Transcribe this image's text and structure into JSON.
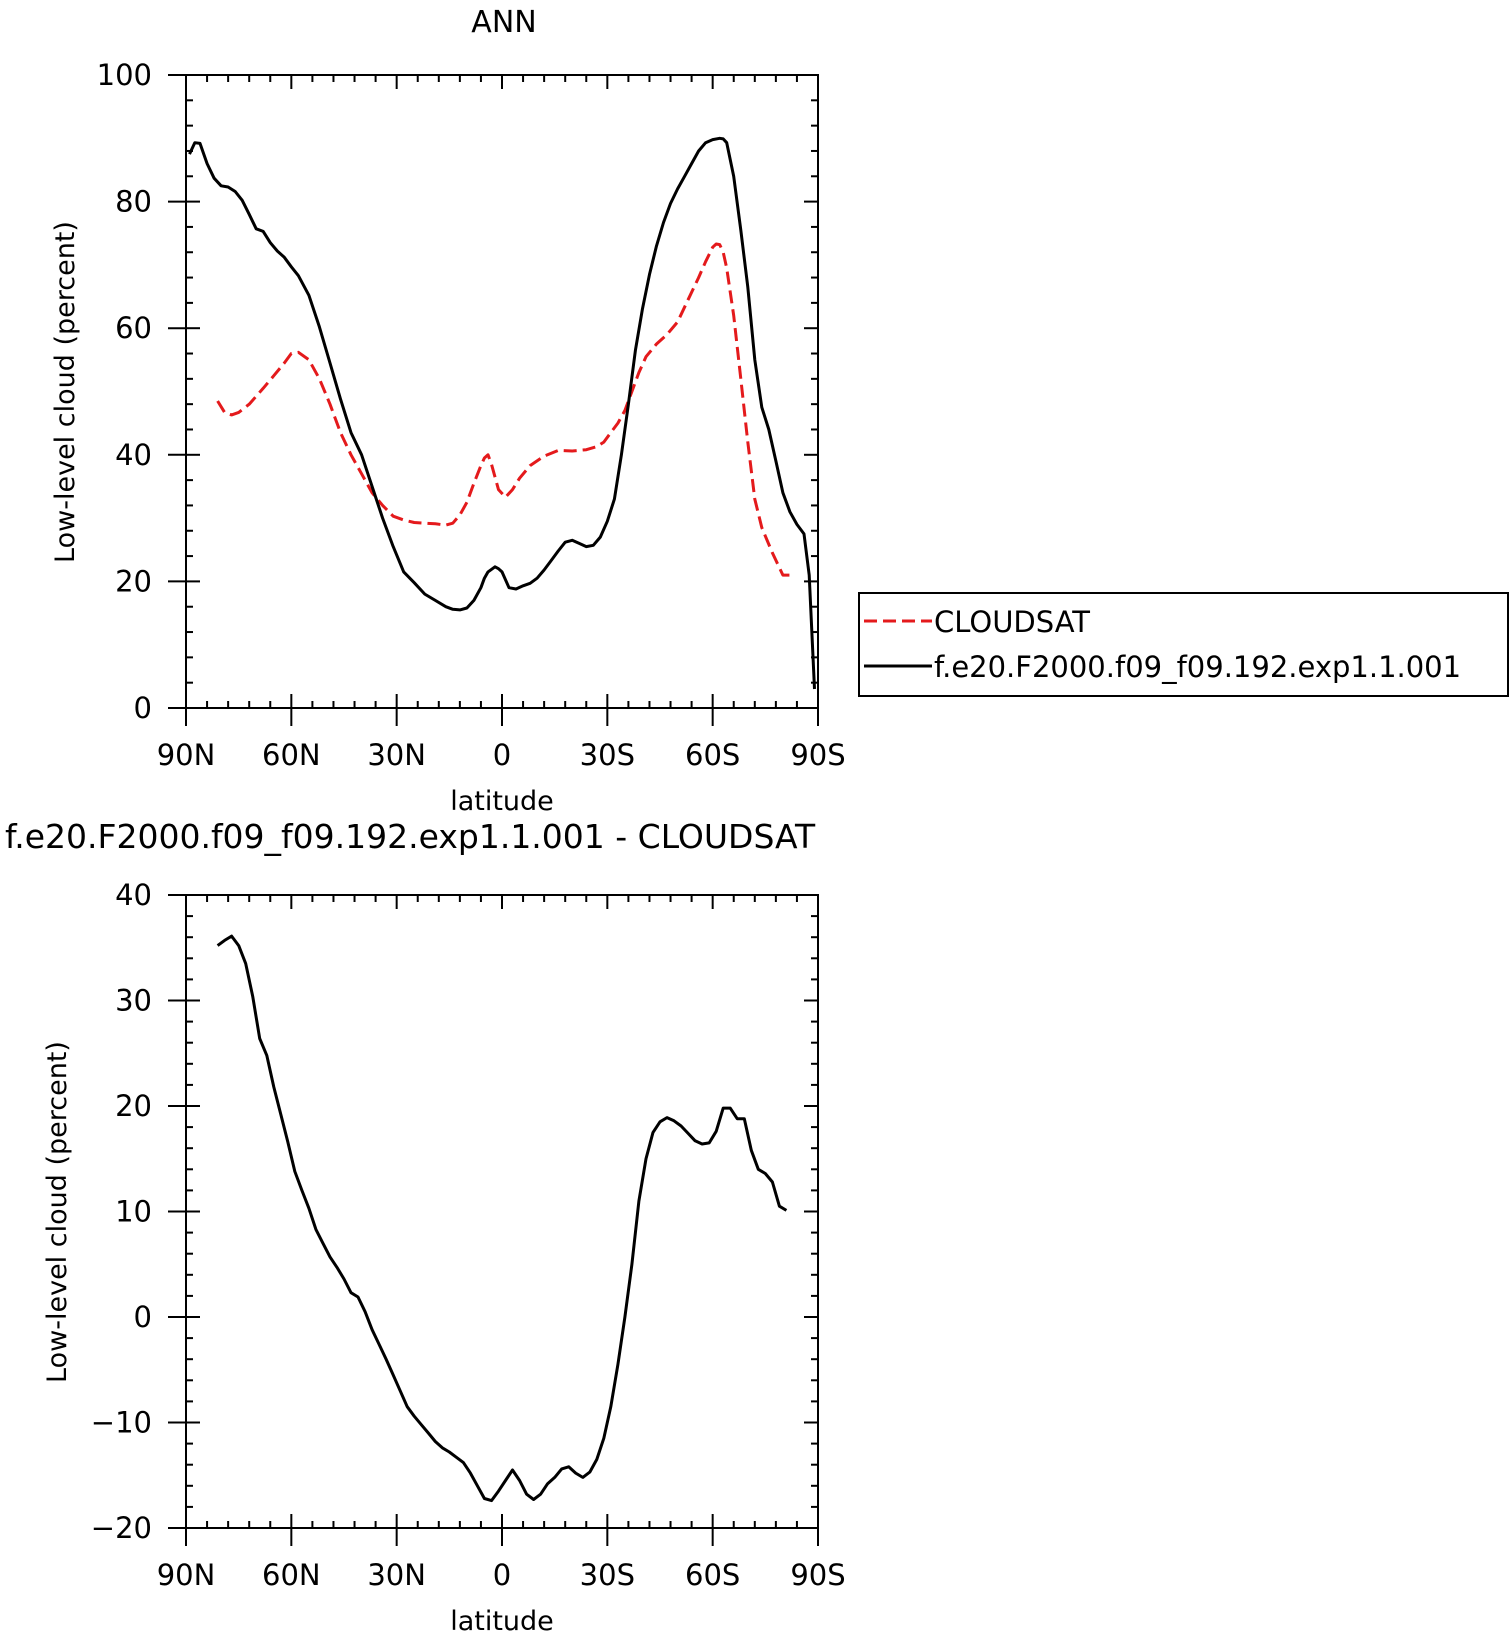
{
  "chart_data": [
    {
      "type": "line",
      "title": "ANN",
      "xlabel": "latitude",
      "ylabel": "Low-level cloud (percent)",
      "xlim": [
        90,
        -90
      ],
      "ylim": [
        0,
        100
      ],
      "xticks": [
        {
          "value": 90,
          "label": "90N"
        },
        {
          "value": 60,
          "label": "60N"
        },
        {
          "value": 30,
          "label": "30N"
        },
        {
          "value": 0,
          "label": "0"
        },
        {
          "value": -30,
          "label": "30S"
        },
        {
          "value": -60,
          "label": "60S"
        },
        {
          "value": -90,
          "label": "90S"
        }
      ],
      "yticks": [
        0,
        20,
        40,
        60,
        80,
        100
      ],
      "legend_position": "right",
      "series": [
        {
          "name": "CLOUDSAT",
          "color": "#e41a1c",
          "dash": "dashed",
          "x": [
            81,
            79,
            77,
            75,
            72,
            68,
            65,
            62,
            60,
            58,
            55,
            52,
            49,
            46,
            43,
            40,
            37,
            34,
            31,
            28,
            25,
            22,
            19,
            16,
            14,
            12,
            10,
            8,
            6,
            5,
            4,
            3,
            1,
            -1,
            -3,
            -5,
            -8,
            -12,
            -16,
            -20,
            -24,
            -27,
            -29,
            -31,
            -33,
            -35,
            -37,
            -39,
            -41,
            -44,
            -47,
            -50,
            -53,
            -56,
            -58,
            -60,
            -61,
            -62,
            -63,
            -64,
            -66,
            -68,
            -70,
            -72,
            -74,
            -77,
            -80,
            -82
          ],
          "values": [
            48.5,
            46.7,
            46.3,
            46.7,
            48.0,
            50.5,
            52.5,
            54.5,
            56.0,
            56.2,
            55.0,
            52.0,
            48.0,
            43.5,
            40.0,
            37.0,
            34.0,
            32.0,
            30.3,
            29.7,
            29.3,
            29.2,
            29.1,
            28.9,
            29.2,
            30.5,
            32.5,
            35.5,
            38.3,
            39.5,
            40.0,
            38.5,
            34.5,
            33.3,
            34.5,
            36.3,
            38.3,
            39.8,
            40.7,
            40.6,
            40.8,
            41.3,
            42.0,
            43.5,
            45.0,
            47.0,
            50.0,
            53.0,
            55.5,
            57.5,
            59.0,
            61.0,
            64.5,
            68.0,
            70.5,
            72.8,
            73.3,
            73.2,
            72.0,
            69.5,
            62.0,
            52.0,
            42.0,
            33.0,
            28.5,
            24.5,
            21.0,
            21.0
          ]
        },
        {
          "name": "f.e20.F2000.f09_f09.192.exp1.1.001",
          "color": "#000000",
          "dash": "solid",
          "x": [
            89,
            87.5,
            86,
            84,
            82,
            80,
            78,
            76,
            74,
            72,
            70,
            68,
            66,
            64,
            62,
            60,
            58,
            55,
            52,
            49,
            46,
            43,
            40,
            37,
            34,
            31,
            28,
            25,
            22,
            19,
            16,
            14,
            12,
            10,
            8,
            6,
            5,
            4,
            2,
            1,
            0,
            -2,
            -4,
            -6,
            -8,
            -10,
            -12,
            -14,
            -16,
            -18,
            -20,
            -22,
            -24,
            -26,
            -28,
            -30,
            -32,
            -34,
            -36,
            -38,
            -40,
            -42,
            -44,
            -46,
            -48,
            -50,
            -52,
            -54,
            -56,
            -58,
            -60,
            -62,
            -63,
            -64,
            -66,
            -68,
            -70,
            -72,
            -74,
            -76,
            -78,
            -80,
            -82,
            -84,
            -86,
            -87.5,
            -89
          ],
          "values": [
            87.5,
            89.3,
            89.2,
            86.0,
            83.7,
            82.5,
            82.3,
            81.6,
            80.2,
            78.0,
            75.7,
            75.3,
            73.5,
            72.2,
            71.2,
            69.7,
            68.3,
            65.2,
            60.2,
            54.5,
            48.8,
            43.5,
            40.0,
            35.0,
            30.0,
            25.5,
            21.5,
            19.8,
            18.0,
            17.0,
            16.0,
            15.6,
            15.5,
            15.8,
            17.0,
            19.0,
            20.5,
            21.5,
            22.3,
            22.0,
            21.5,
            19.0,
            18.8,
            19.3,
            19.7,
            20.5,
            21.8,
            23.3,
            24.8,
            26.2,
            26.5,
            26.0,
            25.5,
            25.7,
            27.0,
            29.5,
            33.0,
            40.0,
            48.0,
            56.5,
            63.0,
            68.5,
            73.0,
            76.7,
            79.7,
            82.0,
            84.0,
            86.0,
            88.0,
            89.3,
            89.8,
            90.0,
            89.9,
            89.3,
            84.0,
            75.5,
            66.5,
            55.0,
            47.5,
            44.0,
            39.0,
            34.0,
            31.0,
            29.0,
            27.5,
            21.0,
            3.0
          ]
        }
      ]
    },
    {
      "type": "line",
      "title": "f.e20.F2000.f09_f09.192.exp1.1.001 - CLOUDSAT",
      "xlabel": "latitude",
      "ylabel": "Low-level cloud (percent)",
      "xlim": [
        90,
        -90
      ],
      "ylim": [
        -20,
        40
      ],
      "xticks": [
        {
          "value": 90,
          "label": "90N"
        },
        {
          "value": 60,
          "label": "60N"
        },
        {
          "value": 30,
          "label": "30N"
        },
        {
          "value": 0,
          "label": "0"
        },
        {
          "value": -30,
          "label": "30S"
        },
        {
          "value": -60,
          "label": "60S"
        },
        {
          "value": -90,
          "label": "90S"
        }
      ],
      "yticks": [
        -20,
        -10,
        0,
        10,
        20,
        30,
        40
      ],
      "series": [
        {
          "color": "#000000",
          "dash": "solid",
          "x": [
            81,
            79,
            77,
            75,
            73,
            71,
            69,
            67,
            65,
            63,
            61,
            59,
            57,
            55,
            53,
            51,
            49,
            47,
            45,
            43,
            41,
            39,
            37,
            35,
            33,
            31,
            29,
            27,
            25,
            23,
            21,
            19,
            17,
            15,
            13,
            11,
            9,
            7,
            5,
            3,
            1,
            -1,
            -3,
            -5,
            -7,
            -9,
            -11,
            -13,
            -15,
            -17,
            -19,
            -21,
            -23,
            -25,
            -27,
            -29,
            -31,
            -33,
            -35,
            -37,
            -39,
            -41,
            -43,
            -45,
            -47,
            -49,
            -51,
            -53,
            -55,
            -57,
            -59,
            -61,
            -63,
            -65,
            -67,
            -69,
            -71,
            -73,
            -75,
            -77,
            -79,
            -81
          ],
          "values": [
            35.2,
            35.7,
            36.1,
            35.2,
            33.5,
            30.4,
            26.4,
            24.8,
            21.8,
            19.2,
            16.6,
            13.8,
            12.0,
            10.3,
            8.3,
            7.0,
            5.7,
            4.7,
            3.6,
            2.3,
            1.9,
            0.5,
            -1.2,
            -2.6,
            -4.0,
            -5.5,
            -7.0,
            -8.5,
            -9.4,
            -10.2,
            -11.0,
            -11.8,
            -12.4,
            -12.8,
            -13.3,
            -13.8,
            -14.8,
            -16.0,
            -17.2,
            -17.4,
            -16.5,
            -15.5,
            -14.5,
            -15.5,
            -16.8,
            -17.3,
            -16.8,
            -15.8,
            -15.2,
            -14.4,
            -14.2,
            -14.8,
            -15.2,
            -14.7,
            -13.5,
            -11.5,
            -8.5,
            -4.5,
            0.0,
            5.0,
            11.0,
            15.0,
            17.5,
            18.5,
            18.9,
            18.6,
            18.1,
            17.4,
            16.7,
            16.4,
            16.5,
            17.6,
            19.8,
            19.8,
            18.8,
            18.8,
            15.8,
            14.0,
            13.6,
            12.8,
            10.5,
            10.1
          ]
        }
      ]
    }
  ]
}
